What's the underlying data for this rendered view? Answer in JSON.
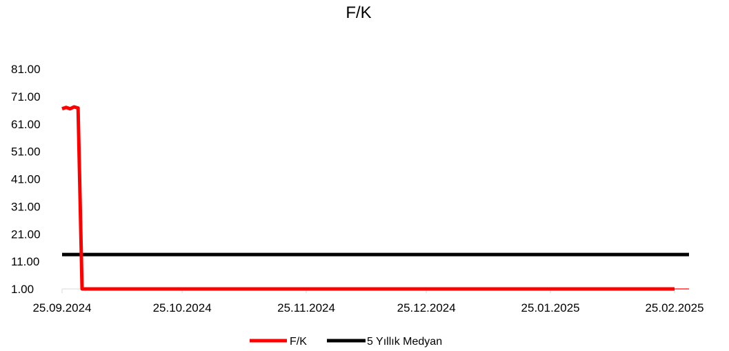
{
  "chart_data": {
    "type": "line",
    "title": "F/K",
    "xlabel": "",
    "ylabel": "",
    "x_range": [
      "2024-09-25",
      "2025-02-25"
    ],
    "x_tick_labels": [
      "25.09.2024",
      "25.10.2024",
      "25.11.2024",
      "25.12.2024",
      "25.01.2025",
      "25.02.2025"
    ],
    "x_tick_dates": [
      "2024-09-25",
      "2024-10-25",
      "2024-11-25",
      "2024-12-25",
      "2025-01-25",
      "2025-02-25"
    ],
    "ylim": [
      1,
      81
    ],
    "y_ticks": [
      1,
      11,
      21,
      31,
      41,
      51,
      61,
      71,
      81
    ],
    "y_tick_labels": [
      "1.00",
      "11.00",
      "21.00",
      "31.00",
      "41.00",
      "51.00",
      "61.00",
      "71.00",
      "81.00"
    ],
    "grid": false,
    "legend_position": "bottom",
    "series": [
      {
        "name": "F/K",
        "color": "#ff0000",
        "points": [
          {
            "x": "2024-09-25",
            "y": 66.5
          },
          {
            "x": "2024-09-26",
            "y": 67.0
          },
          {
            "x": "2024-09-27",
            "y": 66.5
          },
          {
            "x": "2024-09-28",
            "y": 67.2
          },
          {
            "x": "2024-09-29",
            "y": 66.8
          },
          {
            "x": "2024-09-30",
            "y": 1.0
          },
          {
            "x": "2025-02-25",
            "y": 1.0
          }
        ]
      },
      {
        "name": "5 Yıllık Medyan",
        "color": "#000000",
        "points": [
          {
            "x": "2024-09-25",
            "y": 13.5
          },
          {
            "x": "2025-02-28",
            "y": 13.5
          }
        ]
      }
    ]
  }
}
